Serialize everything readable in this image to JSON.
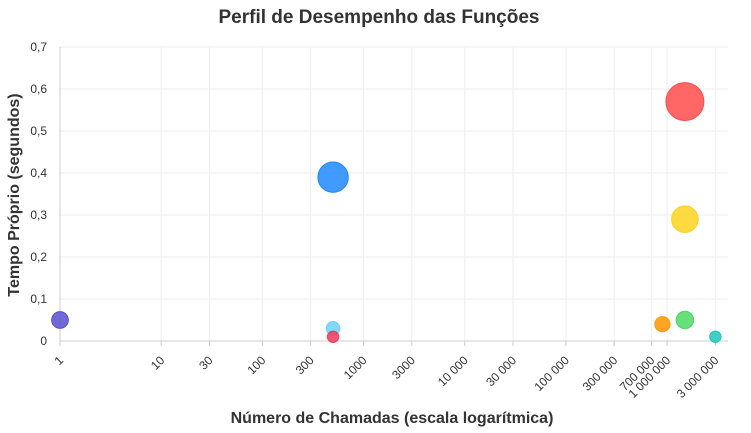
{
  "chart_data": {
    "type": "scatter",
    "title": "Perfil de Desempenho das Funções",
    "xlabel": "Número de Chamadas (escala logarítmica)",
    "ylabel": "Tempo Próprio (segundos)",
    "xscale": "log",
    "xlim": [
      1,
      4000000
    ],
    "ylim": [
      0,
      0.7
    ],
    "grid": true,
    "legend": "none",
    "x_ticks": [
      {
        "value": 1,
        "label": "1"
      },
      {
        "value": 10,
        "label": "10"
      },
      {
        "value": 30,
        "label": "30"
      },
      {
        "value": 100,
        "label": "100"
      },
      {
        "value": 300,
        "label": "300"
      },
      {
        "value": 1000,
        "label": "1000"
      },
      {
        "value": 3000,
        "label": "3000"
      },
      {
        "value": 10000,
        "label": "10 000"
      },
      {
        "value": 30000,
        "label": "30 000"
      },
      {
        "value": 100000,
        "label": "100 000"
      },
      {
        "value": 300000,
        "label": "300 000"
      },
      {
        "value": 700000,
        "label": "700 000"
      },
      {
        "value": 1000000,
        "label": "1 000 000"
      },
      {
        "value": 3000000,
        "label": "3 000 000"
      }
    ],
    "y_ticks": [
      {
        "value": 0,
        "label": "0"
      },
      {
        "value": 0.1,
        "label": "0,1"
      },
      {
        "value": 0.2,
        "label": "0,2"
      },
      {
        "value": 0.3,
        "label": "0,3"
      },
      {
        "value": 0.4,
        "label": "0,4"
      },
      {
        "value": 0.5,
        "label": "0,5"
      },
      {
        "value": 0.6,
        "label": "0,6"
      },
      {
        "value": 0.7,
        "label": "0,7"
      }
    ],
    "points": [
      {
        "x": 1,
        "y": 0.05,
        "size": 2.2,
        "color": "#5a4fcf"
      },
      {
        "x": 500,
        "y": 0.39,
        "size": 4.0,
        "color": "#1e88ff"
      },
      {
        "x": 500,
        "y": 0.03,
        "size": 1.8,
        "color": "#6dd0f7"
      },
      {
        "x": 500,
        "y": 0.01,
        "size": 1.5,
        "color": "#ee3b5b"
      },
      {
        "x": 1500000,
        "y": 0.57,
        "size": 5.0,
        "color": "#ff4c4c"
      },
      {
        "x": 1500000,
        "y": 0.29,
        "size": 3.5,
        "color": "#ffd21f"
      },
      {
        "x": 1500000,
        "y": 0.05,
        "size": 2.3,
        "color": "#4cd964"
      },
      {
        "x": 900000,
        "y": 0.04,
        "size": 2.0,
        "color": "#ff9500"
      },
      {
        "x": 3000000,
        "y": 0.01,
        "size": 1.5,
        "color": "#1cc8b8"
      }
    ]
  }
}
